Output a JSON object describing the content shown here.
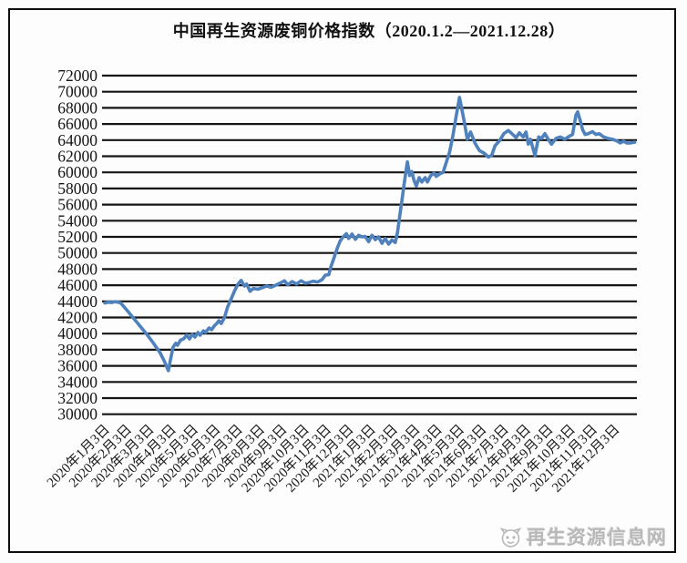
{
  "watermark": {
    "text": "再生资源信息网"
  },
  "chart_data": {
    "type": "line",
    "title": "中国再生资源废铜价格指数（2020.1.2—2021.12.28）",
    "xlabel": "",
    "ylabel": "",
    "ylim": [
      30000,
      72000
    ],
    "grid": "horizontal",
    "legend": "none",
    "line_color": "#4f81bd",
    "grid_color": "#141414",
    "y_ticks": [
      30000,
      32000,
      34000,
      36000,
      38000,
      40000,
      42000,
      44000,
      46000,
      48000,
      50000,
      52000,
      54000,
      56000,
      58000,
      60000,
      62000,
      64000,
      66000,
      68000,
      70000,
      72000
    ],
    "x_tick_labels": [
      "2020年1月3日",
      "2020年2月3日",
      "2020年3月3日",
      "2020年4月3日",
      "2020年5月3日",
      "2020年6月3日",
      "2020年7月3日",
      "2020年8月3日",
      "2020年9月3日",
      "2020年10月3日",
      "2020年11月3日",
      "2020年12月3日",
      "2021年1月3日",
      "2021年2月3日",
      "2021年3月3日",
      "2021年4月3日",
      "2021年5月3日",
      "2021年6月3日",
      "2021年7月3日",
      "2021年8月3日",
      "2021年9月3日",
      "2021年10月3日",
      "2021年11月3日",
      "2021年12月3日"
    ],
    "x_unit": "months_since_2020-01-02",
    "series": [
      {
        "color": "#4f81bd",
        "points": [
          [
            0.0,
            43800
          ],
          [
            0.15,
            43900
          ],
          [
            0.3,
            43850
          ],
          [
            0.45,
            43950
          ],
          [
            0.6,
            43900
          ],
          [
            0.72,
            43800
          ],
          [
            1.0,
            42900
          ],
          [
            1.3,
            41900
          ],
          [
            1.6,
            40900
          ],
          [
            1.9,
            39900
          ],
          [
            2.2,
            38800
          ],
          [
            2.5,
            37600
          ],
          [
            2.7,
            36500
          ],
          [
            2.87,
            35400
          ],
          [
            2.95,
            36600
          ],
          [
            3.08,
            38300
          ],
          [
            3.2,
            38800
          ],
          [
            3.28,
            38550
          ],
          [
            3.42,
            39200
          ],
          [
            3.55,
            39350
          ],
          [
            3.7,
            39800
          ],
          [
            3.82,
            39350
          ],
          [
            3.95,
            39900
          ],
          [
            4.07,
            39570
          ],
          [
            4.2,
            40150
          ],
          [
            4.3,
            39800
          ],
          [
            4.45,
            40350
          ],
          [
            4.55,
            40150
          ],
          [
            4.7,
            40700
          ],
          [
            4.82,
            40475
          ],
          [
            4.95,
            41000
          ],
          [
            5.05,
            41250
          ],
          [
            5.15,
            41600
          ],
          [
            5.25,
            41250
          ],
          [
            5.4,
            42000
          ],
          [
            5.54,
            43300
          ],
          [
            5.7,
            44300
          ],
          [
            5.85,
            45300
          ],
          [
            6.0,
            46100
          ],
          [
            6.15,
            46600
          ],
          [
            6.3,
            45900
          ],
          [
            6.4,
            46150
          ],
          [
            6.55,
            45250
          ],
          [
            6.7,
            45600
          ],
          [
            6.9,
            45500
          ],
          [
            7.1,
            45700
          ],
          [
            7.3,
            45900
          ],
          [
            7.5,
            45750
          ],
          [
            7.7,
            46000
          ],
          [
            7.9,
            46250
          ],
          [
            8.1,
            46550
          ],
          [
            8.25,
            46050
          ],
          [
            8.45,
            46450
          ],
          [
            8.65,
            46150
          ],
          [
            8.85,
            46550
          ],
          [
            9.05,
            46250
          ],
          [
            9.23,
            46350
          ],
          [
            9.4,
            46500
          ],
          [
            9.6,
            46400
          ],
          [
            9.8,
            46700
          ],
          [
            9.95,
            47250
          ],
          [
            10.1,
            47300
          ],
          [
            10.2,
            48300
          ],
          [
            10.35,
            49500
          ],
          [
            10.5,
            50700
          ],
          [
            10.62,
            51500
          ],
          [
            10.75,
            52000
          ],
          [
            10.9,
            52400
          ],
          [
            11.0,
            51800
          ],
          [
            11.15,
            52350
          ],
          [
            11.3,
            51700
          ],
          [
            11.45,
            52200
          ],
          [
            11.6,
            52000
          ],
          [
            11.75,
            52050
          ],
          [
            11.9,
            51400
          ],
          [
            12.05,
            52200
          ],
          [
            12.2,
            51650
          ],
          [
            12.35,
            52000
          ],
          [
            12.5,
            51200
          ],
          [
            12.65,
            51800
          ],
          [
            12.8,
            51100
          ],
          [
            12.95,
            51600
          ],
          [
            13.1,
            51300
          ],
          [
            13.2,
            52500
          ],
          [
            13.3,
            54500
          ],
          [
            13.4,
            56500
          ],
          [
            13.5,
            58500
          ],
          [
            13.6,
            60400
          ],
          [
            13.65,
            61300
          ],
          [
            13.75,
            59600
          ],
          [
            13.85,
            60100
          ],
          [
            13.95,
            59000
          ],
          [
            14.05,
            58300
          ],
          [
            14.18,
            59350
          ],
          [
            14.3,
            58800
          ],
          [
            14.45,
            59350
          ],
          [
            14.55,
            58800
          ],
          [
            14.7,
            59600
          ],
          [
            14.85,
            59900
          ],
          [
            14.95,
            59500
          ],
          [
            15.1,
            59800
          ],
          [
            15.26,
            60000
          ],
          [
            15.4,
            61200
          ],
          [
            15.55,
            62500
          ],
          [
            15.7,
            64500
          ],
          [
            15.85,
            67000
          ],
          [
            16.0,
            69300
          ],
          [
            16.2,
            66500
          ],
          [
            16.35,
            64100
          ],
          [
            16.5,
            65000
          ],
          [
            16.7,
            63600
          ],
          [
            16.9,
            62700
          ],
          [
            17.1,
            62400
          ],
          [
            17.3,
            61900
          ],
          [
            17.45,
            62100
          ],
          [
            17.6,
            63300
          ],
          [
            17.8,
            63900
          ],
          [
            18.0,
            64800
          ],
          [
            18.2,
            65200
          ],
          [
            18.4,
            64700
          ],
          [
            18.55,
            64300
          ],
          [
            18.7,
            64900
          ],
          [
            18.87,
            64400
          ],
          [
            19.0,
            65000
          ],
          [
            19.1,
            63500
          ],
          [
            19.2,
            64100
          ],
          [
            19.4,
            62100
          ],
          [
            19.57,
            64400
          ],
          [
            19.7,
            64200
          ],
          [
            19.85,
            64800
          ],
          [
            20.0,
            64100
          ],
          [
            20.15,
            63500
          ],
          [
            20.35,
            64200
          ],
          [
            20.55,
            64400
          ],
          [
            20.75,
            64100
          ],
          [
            20.9,
            64400
          ],
          [
            21.1,
            64700
          ],
          [
            21.25,
            67100
          ],
          [
            21.33,
            67500
          ],
          [
            21.45,
            66400
          ],
          [
            21.55,
            65300
          ],
          [
            21.66,
            64700
          ],
          [
            21.8,
            64800
          ],
          [
            22.0,
            65050
          ],
          [
            22.15,
            64700
          ],
          [
            22.3,
            64800
          ],
          [
            22.5,
            64400
          ],
          [
            22.7,
            64200
          ],
          [
            22.9,
            64100
          ],
          [
            23.1,
            63900
          ],
          [
            23.25,
            63650
          ],
          [
            23.4,
            63870
          ],
          [
            23.55,
            63640
          ],
          [
            23.7,
            63640
          ],
          [
            23.9,
            63750
          ]
        ]
      }
    ]
  }
}
